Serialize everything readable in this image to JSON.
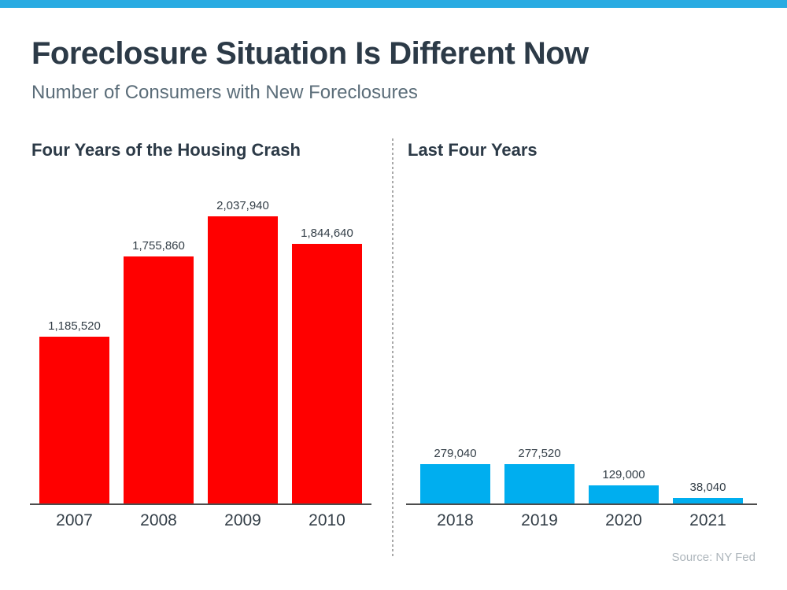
{
  "page": {
    "title": "Foreclosure Situation Is Different Now",
    "subtitle": "Number of Consumers with New Foreclosures",
    "source": "Source: NY Fed"
  },
  "colors": {
    "top_accent_bar": "#29ABE2",
    "crash_bars": "#FF0000",
    "recent_bars": "#00AEEF",
    "heading": "#2C3A47",
    "subtitle": "#5B6D79",
    "label": "#333E47",
    "axis": "#4D4D4D",
    "divider": "#A8A8A8",
    "source": "#AEB6BC"
  },
  "chart_data": [
    {
      "type": "bar",
      "title": "Four Years of the Housing Crash",
      "categories": [
        "2007",
        "2008",
        "2009",
        "2010"
      ],
      "values": [
        1185520,
        1755860,
        2037940,
        1844640
      ],
      "labels": [
        "1,185,520",
        "1,755,860",
        "2,037,940",
        "1,844,640"
      ],
      "bar_color": "#FF0000",
      "xlabel": "",
      "ylabel": "",
      "ylim": [
        0,
        2037940
      ],
      "grid": false,
      "legend": "none",
      "value_labels_position": "above"
    },
    {
      "type": "bar",
      "title": "Last Four Years",
      "categories": [
        "2018",
        "2019",
        "2020",
        "2021"
      ],
      "values": [
        279040,
        277520,
        129000,
        38040
      ],
      "labels": [
        "279,040",
        "277,520",
        "129,000",
        "38,040"
      ],
      "bar_color": "#00AEEF",
      "xlabel": "",
      "ylabel": "",
      "ylim": [
        0,
        2037940
      ],
      "grid": false,
      "legend": "none",
      "value_labels_position": "above"
    }
  ]
}
